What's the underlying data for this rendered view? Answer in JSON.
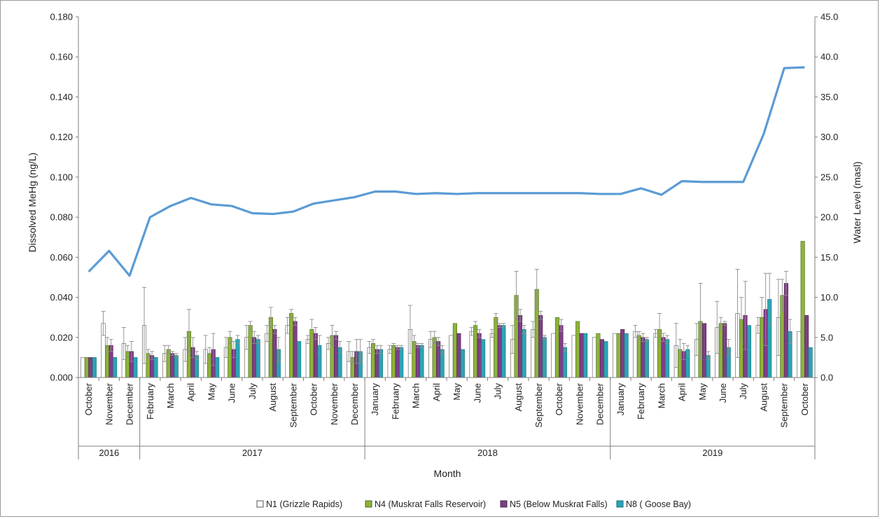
{
  "chart_data": {
    "type": "bar",
    "title": "",
    "xlabel": "Month",
    "ylabel": "Dissolved MeHg (ng/L)",
    "ylabel_right": "Water Level (masl)",
    "ylim": [
      0,
      0.18
    ],
    "yticks": [
      "0.000",
      "0.020",
      "0.040",
      "0.060",
      "0.080",
      "0.100",
      "0.120",
      "0.140",
      "0.160",
      "0.180"
    ],
    "y2lim": [
      0,
      45
    ],
    "y2ticks": [
      "0.0",
      "5.0",
      "10.0",
      "15.0",
      "20.0",
      "25.0",
      "30.0",
      "35.0",
      "40.0",
      "45.0"
    ],
    "legend_position": "bottom",
    "grid": false,
    "years": [
      {
        "label": "2016",
        "start": 0,
        "end": 2
      },
      {
        "label": "2017",
        "start": 3,
        "end": 13
      },
      {
        "label": "2018",
        "start": 14,
        "end": 25
      },
      {
        "label": "2019",
        "start": 26,
        "end": 35
      }
    ],
    "categories": [
      "October",
      "November",
      "December",
      "February",
      "March",
      "April",
      "May",
      "June",
      "July",
      "August",
      "September",
      "October",
      "November",
      "December",
      "January",
      "February",
      "March",
      "April",
      "May",
      "June",
      "July",
      "August",
      "September",
      "October",
      "November",
      "December",
      "January",
      "February",
      "March",
      "April",
      "May",
      "June",
      "July",
      "August",
      "September",
      "October"
    ],
    "series": [
      {
        "name": "N1 (Grizzle Rapids)",
        "color": "#ffffff",
        "stroke": "#555555",
        "values": [
          0.01,
          0.027,
          0.017,
          0.026,
          0.012,
          0.014,
          0.014,
          0.015,
          0.02,
          0.022,
          0.026,
          0.019,
          0.017,
          0.013,
          0.015,
          0.014,
          0.024,
          0.019,
          0.021,
          0.023,
          0.022,
          0.019,
          0.024,
          0.022,
          0.021,
          0.02,
          0.022,
          0.023,
          0.022,
          0.016,
          0.019,
          0.025,
          0.032,
          0.026,
          0.03,
          0.023
        ],
        "errors": [
          0.0,
          0.006,
          0.008,
          0.019,
          0.004,
          0.006,
          0.007,
          0.005,
          0.006,
          0.004,
          0.004,
          0.002,
          0.003,
          0.005,
          0.003,
          0.002,
          0.012,
          0.004,
          0.0,
          0.002,
          0.002,
          0.007,
          0.004,
          0.0,
          0.0,
          0.0,
          0.0,
          0.003,
          0.002,
          0.011,
          0.008,
          0.013,
          0.022,
          0.004,
          0.019,
          0.0
        ]
      },
      {
        "name": "N4 (Muskrat Falls Reservoir)",
        "color": "#8db33b",
        "stroke": "#4e6b1c",
        "values": [
          0.01,
          0.016,
          0.013,
          0.012,
          0.014,
          0.023,
          0.012,
          0.02,
          0.026,
          0.03,
          0.032,
          0.024,
          0.021,
          0.01,
          0.017,
          0.016,
          0.018,
          0.02,
          0.027,
          0.026,
          0.03,
          0.041,
          0.044,
          0.03,
          0.028,
          0.022,
          0.022,
          0.021,
          0.024,
          0.014,
          0.028,
          0.027,
          0.029,
          0.03,
          0.041,
          0.068
        ],
        "errors": [
          0.0,
          0.004,
          0.003,
          0.002,
          0.002,
          0.011,
          0.003,
          0.003,
          0.002,
          0.005,
          0.002,
          0.005,
          0.005,
          0.003,
          0.002,
          0.001,
          0.003,
          0.003,
          0.0,
          0.002,
          0.002,
          0.012,
          0.01,
          0.0,
          0.0,
          0.0,
          0.0,
          0.002,
          0.008,
          0.005,
          0.019,
          0.003,
          0.011,
          0.01,
          0.008,
          0.0
        ]
      },
      {
        "name": "N5 (Below Muskrat Falls)",
        "color": "#7f3f86",
        "stroke": "#4a1f4f",
        "values": [
          0.01,
          0.016,
          0.013,
          0.011,
          0.012,
          0.015,
          0.014,
          0.014,
          0.02,
          0.024,
          0.028,
          0.022,
          0.021,
          0.013,
          0.014,
          0.015,
          0.016,
          0.018,
          0.022,
          0.022,
          0.026,
          0.031,
          0.031,
          0.026,
          0.022,
          0.019,
          0.024,
          0.02,
          0.02,
          0.013,
          0.027,
          0.027,
          0.031,
          0.034,
          0.047,
          0.031
        ],
        "errors": [
          0.0,
          0.003,
          0.005,
          0.002,
          0.001,
          0.005,
          0.008,
          0.004,
          0.003,
          0.002,
          0.002,
          0.003,
          0.002,
          0.006,
          0.002,
          0.001,
          0.001,
          0.002,
          0.0,
          0.002,
          0.001,
          0.003,
          0.002,
          0.003,
          0.0,
          0.0,
          0.0,
          0.002,
          0.002,
          0.004,
          0.0,
          0.001,
          0.017,
          0.018,
          0.006,
          0.0
        ]
      },
      {
        "name": "N8 ( Goose Bay)",
        "color": "#2ba5b5",
        "stroke": "#1a6e7a",
        "values": [
          0.01,
          0.01,
          0.01,
          0.01,
          0.011,
          0.011,
          0.01,
          0.019,
          0.019,
          0.014,
          0.018,
          0.016,
          0.015,
          0.013,
          0.014,
          0.015,
          0.016,
          0.014,
          0.014,
          0.019,
          0.026,
          0.024,
          0.02,
          0.015,
          0.022,
          0.018,
          0.022,
          0.019,
          0.019,
          0.014,
          0.011,
          0.015,
          0.026,
          0.039,
          0.023,
          0.015
        ],
        "errors": [
          0.0,
          0.0,
          0.0,
          0.0,
          0.001,
          0.002,
          0.0,
          0.002,
          0.002,
          0.006,
          0.0,
          0.005,
          0.003,
          0.006,
          0.002,
          0.001,
          0.001,
          0.002,
          0.0,
          0.0,
          0.001,
          0.002,
          0.001,
          0.002,
          0.0,
          0.0,
          0.0,
          0.001,
          0.002,
          0.002,
          0.002,
          0.004,
          0.0,
          0.013,
          0.006,
          0.0
        ]
      }
    ],
    "line": {
      "name": "Water Level",
      "color": "#5b9bd5",
      "axis": "right",
      "values": [
        13.2,
        15.8,
        12.7,
        20.0,
        21.4,
        22.4,
        21.6,
        21.4,
        20.5,
        20.4,
        20.7,
        21.7,
        22.1,
        22.5,
        23.2,
        23.2,
        22.9,
        23.0,
        22.9,
        23.0,
        23.0,
        23.0,
        23.0,
        23.0,
        23.0,
        22.9,
        22.9,
        23.6,
        22.8,
        24.5,
        24.4,
        24.4,
        24.4,
        30.4,
        38.6,
        38.7
      ]
    }
  }
}
